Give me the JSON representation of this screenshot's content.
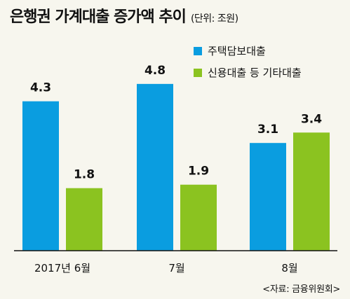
{
  "header": {
    "title": "은행권 가계대출 증가액 추이",
    "unit": "(단위: 조원)"
  },
  "source": "<자료: 금융위원회>",
  "chart_data": {
    "type": "bar",
    "categories": [
      "2017년 6월",
      "7월",
      "8월"
    ],
    "series": [
      {
        "name": "주택담보대출",
        "values": [
          4.3,
          4.8,
          3.1
        ],
        "color": "#0a9de0"
      },
      {
        "name": "신용대출 등 기타대출",
        "values": [
          1.8,
          1.9,
          3.4
        ],
        "color": "#8bc320"
      }
    ],
    "value_labels": {
      "주택담보대출": [
        "4.3",
        "4.8",
        "3.1"
      ],
      "신용대출 등 기타대출": [
        "1.8",
        "1.9",
        "3.4"
      ]
    },
    "ylim": [
      0,
      5.2
    ],
    "legend_position": "top-right",
    "grid": false
  }
}
